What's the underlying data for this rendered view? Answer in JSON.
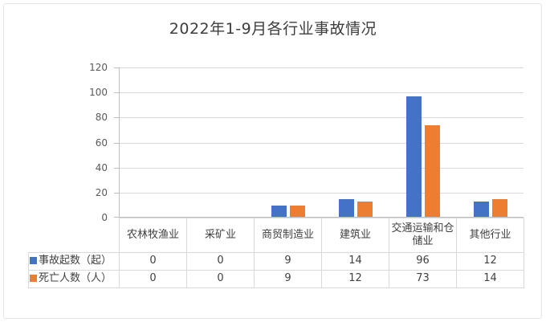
{
  "title": "2022年1-9月各行业事故情况",
  "colors": {
    "series_accidents": "#4472C4",
    "series_deaths": "#ED7D31",
    "gridline": "#D9D9D9",
    "axis_line": "#BFBFBF",
    "table_border": "#D9D9D9",
    "text_dark": "#404040",
    "text_axis": "#595959",
    "frame_border": "#E4E4E4"
  },
  "chart_data": {
    "type": "bar",
    "title": "2022年1-9月各行业事故情况",
    "categories": [
      "农林牧渔业",
      "采矿业",
      "商贸制造业",
      "建筑业",
      "交通运输和仓储业",
      "其他行业"
    ],
    "series": [
      {
        "name": "事故起数（起）",
        "key": "accidents",
        "color": "#4472C4",
        "values": [
          0,
          0,
          9,
          14,
          96,
          12
        ]
      },
      {
        "name": "死亡人数（人）",
        "key": "deaths",
        "color": "#ED7D31",
        "values": [
          0,
          0,
          9,
          12,
          73,
          14
        ]
      }
    ],
    "xlabel": "",
    "ylabel": "",
    "ylim": [
      0,
      120
    ],
    "yticks": [
      0,
      20,
      40,
      60,
      80,
      100,
      120
    ],
    "grid": true,
    "legend_position": "data-table-left"
  }
}
